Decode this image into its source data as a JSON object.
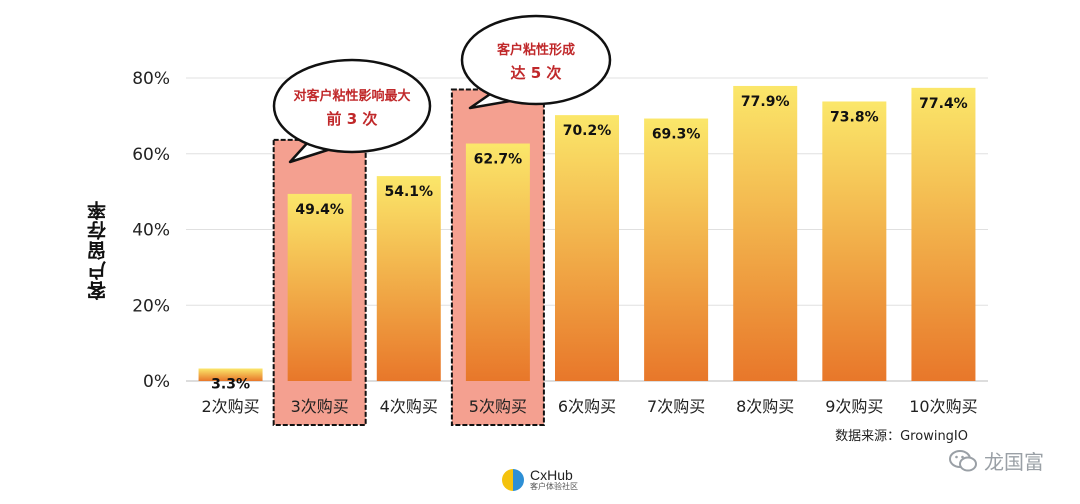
{
  "chart_data": {
    "type": "bar",
    "categories": [
      "2次购买",
      "3次购买",
      "4次购买",
      "5次购买",
      "6次购买",
      "7次购买",
      "8次购买",
      "9次购买",
      "10次购买"
    ],
    "values": [
      3.3,
      49.4,
      54.1,
      62.7,
      70.2,
      69.3,
      77.9,
      73.8,
      77.4
    ],
    "value_labels": [
      "3.3%",
      "49.4%",
      "54.1%",
      "62.7%",
      "70.2%",
      "69.3%",
      "77.9%",
      "73.8%",
      "77.4%"
    ],
    "ylabel": "客户留存率",
    "ylim": [
      0,
      80
    ],
    "yticks": [
      0,
      20,
      40,
      60,
      80
    ],
    "ytick_labels": [
      "0%",
      "20%",
      "40%",
      "60%",
      "80%"
    ],
    "grid": true,
    "highlighted_categories": [
      "3次购买",
      "5次购买"
    ],
    "highlight_color": "#f4a090",
    "bar_gradient": [
      "#fbe76a",
      "#e8772a"
    ],
    "annotations": [
      {
        "lines": [
          "对客户粘性影响最大",
          "前 3 次"
        ],
        "points_to": "3次购买"
      },
      {
        "lines": [
          "客户粘性形成",
          "达 5 次"
        ],
        "points_to": "5次购买"
      }
    ]
  },
  "source": "数据来源：GrowingIO",
  "logo": {
    "name": "CxHub",
    "sub": "客户体验社区"
  },
  "watermark": "龙国富"
}
